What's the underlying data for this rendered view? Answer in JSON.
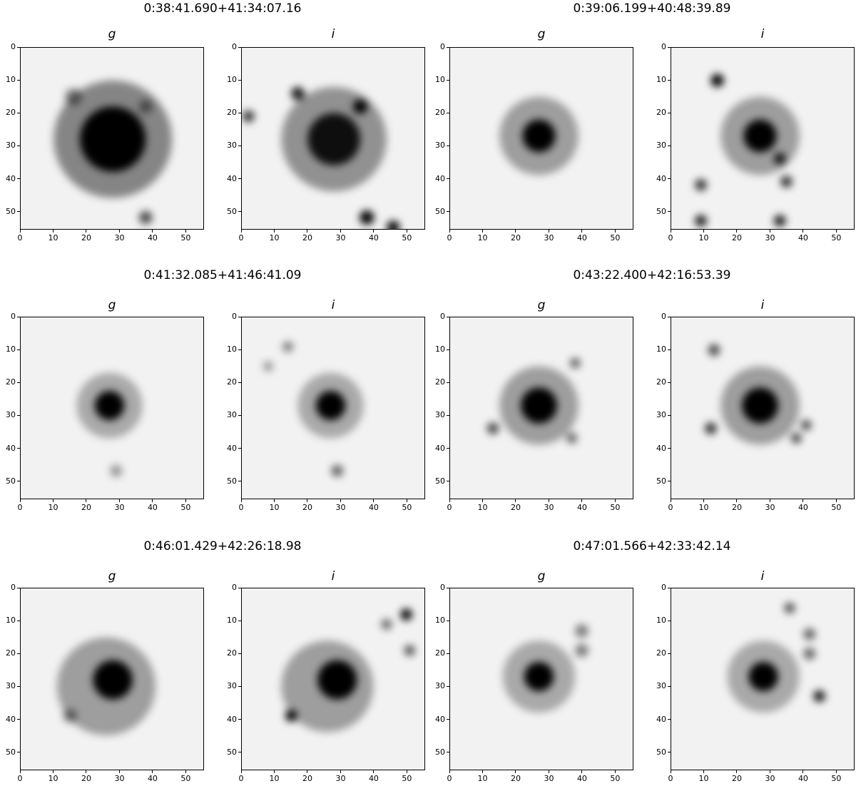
{
  "figure": {
    "tick_values": [
      "0",
      "10",
      "20",
      "30",
      "40",
      "50"
    ],
    "tick_numbers": [
      0,
      10,
      20,
      30,
      40,
      50
    ],
    "image_extent": 55.5,
    "colormap": "gray_r",
    "objects": [
      {
        "coord": "0:38:41.690+41:34:07.16",
        "panels": [
          {
            "filter": "g",
            "sources": [
              {
                "x": 28,
                "y": 28,
                "r": 10,
                "a": 1.0
              },
              {
                "x": 28,
                "y": 28,
                "r": 18,
                "a": 0.45
              },
              {
                "x": 16,
                "y": 15,
                "r": 2.5,
                "a": 0.5
              },
              {
                "x": 38,
                "y": 18,
                "r": 2,
                "a": 0.5
              },
              {
                "x": 38,
                "y": 52,
                "r": 2,
                "a": 0.7
              }
            ]
          },
          {
            "filter": "i",
            "sources": [
              {
                "x": 28,
                "y": 28,
                "r": 8,
                "a": 0.9
              },
              {
                "x": 28,
                "y": 28,
                "r": 16,
                "a": 0.4
              },
              {
                "x": 36,
                "y": 18,
                "r": 2.2,
                "a": 1.0
              },
              {
                "x": 17,
                "y": 14,
                "r": 2,
                "a": 0.9
              },
              {
                "x": 38,
                "y": 52,
                "r": 2.2,
                "a": 1.0
              },
              {
                "x": 46,
                "y": 55,
                "r": 2,
                "a": 1.0
              },
              {
                "x": 2,
                "y": 21,
                "r": 1.8,
                "a": 0.8
              }
            ]
          }
        ]
      },
      {
        "coord": "0:39:06.199+40:48:39.89",
        "panels": [
          {
            "filter": "g",
            "sources": [
              {
                "x": 27,
                "y": 27,
                "r": 5,
                "a": 1.0
              },
              {
                "x": 27,
                "y": 27,
                "r": 12,
                "a": 0.35
              }
            ]
          },
          {
            "filter": "i",
            "sources": [
              {
                "x": 27,
                "y": 27,
                "r": 5,
                "a": 1.0
              },
              {
                "x": 27,
                "y": 27,
                "r": 12,
                "a": 0.35
              },
              {
                "x": 14,
                "y": 10,
                "r": 2,
                "a": 1.0
              },
              {
                "x": 33,
                "y": 34,
                "r": 1.8,
                "a": 0.9
              },
              {
                "x": 35,
                "y": 41,
                "r": 1.8,
                "a": 0.8
              },
              {
                "x": 9,
                "y": 42,
                "r": 1.8,
                "a": 0.8
              },
              {
                "x": 9,
                "y": 53,
                "r": 1.8,
                "a": 0.9
              },
              {
                "x": 33,
                "y": 53,
                "r": 1.8,
                "a": 0.9
              }
            ]
          }
        ]
      },
      {
        "coord": "0:41:32.085+41:46:41.09",
        "panels": [
          {
            "filter": "g",
            "sources": [
              {
                "x": 27,
                "y": 27,
                "r": 4.5,
                "a": 1.0
              },
              {
                "x": 27,
                "y": 27,
                "r": 10,
                "a": 0.3
              },
              {
                "x": 29,
                "y": 47,
                "r": 1.8,
                "a": 0.4
              }
            ]
          },
          {
            "filter": "i",
            "sources": [
              {
                "x": 27,
                "y": 27,
                "r": 4.5,
                "a": 1.0
              },
              {
                "x": 27,
                "y": 27,
                "r": 10,
                "a": 0.3
              },
              {
                "x": 14,
                "y": 9,
                "r": 1.6,
                "a": 0.5
              },
              {
                "x": 29,
                "y": 47,
                "r": 1.8,
                "a": 0.6
              },
              {
                "x": 8,
                "y": 15,
                "r": 1.5,
                "a": 0.4
              }
            ]
          }
        ]
      },
      {
        "coord": "0:43:22.400+42:16:53.39",
        "panels": [
          {
            "filter": "g",
            "sources": [
              {
                "x": 27,
                "y": 27,
                "r": 5.5,
                "a": 1.0
              },
              {
                "x": 27,
                "y": 27,
                "r": 12,
                "a": 0.35
              },
              {
                "x": 13,
                "y": 34,
                "r": 1.8,
                "a": 0.7
              },
              {
                "x": 37,
                "y": 37,
                "r": 1.6,
                "a": 0.6
              },
              {
                "x": 38,
                "y": 14,
                "r": 1.6,
                "a": 0.6
              }
            ]
          },
          {
            "filter": "i",
            "sources": [
              {
                "x": 27,
                "y": 27,
                "r": 5.5,
                "a": 1.0
              },
              {
                "x": 27,
                "y": 27,
                "r": 12,
                "a": 0.35
              },
              {
                "x": 12,
                "y": 34,
                "r": 1.8,
                "a": 0.8
              },
              {
                "x": 13,
                "y": 10,
                "r": 1.8,
                "a": 0.7
              },
              {
                "x": 38,
                "y": 37,
                "r": 1.6,
                "a": 0.7
              },
              {
                "x": 41,
                "y": 33,
                "r": 1.6,
                "a": 0.7
              }
            ]
          }
        ]
      },
      {
        "coord": "0:46:01.429+42:26:18.98",
        "panels": [
          {
            "filter": "g",
            "sources": [
              {
                "x": 28,
                "y": 28,
                "r": 6,
                "a": 1.0
              },
              {
                "x": 26,
                "y": 30,
                "r": 15,
                "a": 0.35
              },
              {
                "x": 15,
                "y": 39,
                "r": 2,
                "a": 0.5
              }
            ]
          },
          {
            "filter": "i",
            "sources": [
              {
                "x": 29,
                "y": 28,
                "r": 6,
                "a": 1.0
              },
              {
                "x": 26,
                "y": 30,
                "r": 14,
                "a": 0.35
              },
              {
                "x": 15,
                "y": 39,
                "r": 1.8,
                "a": 1.0
              },
              {
                "x": 50,
                "y": 8,
                "r": 1.8,
                "a": 1.0
              },
              {
                "x": 51,
                "y": 19,
                "r": 1.6,
                "a": 0.7
              },
              {
                "x": 44,
                "y": 11,
                "r": 1.6,
                "a": 0.6
              }
            ]
          }
        ]
      },
      {
        "coord": "0:47:01.566+42:33:42.14",
        "panels": [
          {
            "filter": "g",
            "sources": [
              {
                "x": 27,
                "y": 27,
                "r": 4.5,
                "a": 1.0
              },
              {
                "x": 27,
                "y": 27,
                "r": 11,
                "a": 0.3
              },
              {
                "x": 40,
                "y": 13,
                "r": 2,
                "a": 0.5
              },
              {
                "x": 40,
                "y": 19,
                "r": 2,
                "a": 0.5
              }
            ]
          },
          {
            "filter": "i",
            "sources": [
              {
                "x": 28,
                "y": 27,
                "r": 4.5,
                "a": 1.0
              },
              {
                "x": 28,
                "y": 27,
                "r": 11,
                "a": 0.3
              },
              {
                "x": 45,
                "y": 33,
                "r": 1.8,
                "a": 0.9
              },
              {
                "x": 36,
                "y": 6,
                "r": 1.6,
                "a": 0.7
              },
              {
                "x": 42,
                "y": 14,
                "r": 1.8,
                "a": 0.6
              },
              {
                "x": 42,
                "y": 20,
                "r": 1.8,
                "a": 0.6
              }
            ]
          }
        ]
      }
    ]
  }
}
